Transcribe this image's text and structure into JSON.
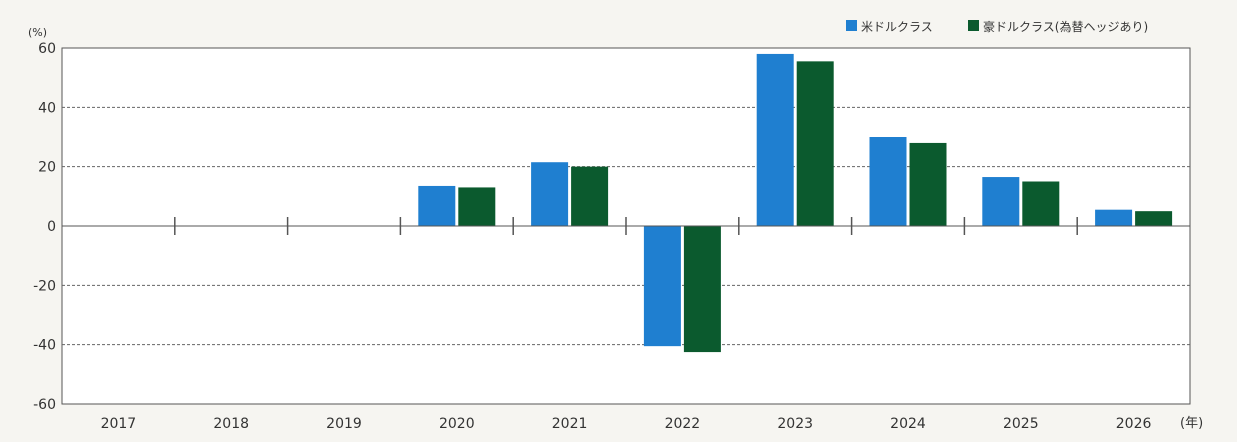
{
  "chart_data": {
    "type": "bar",
    "categories": [
      "2017",
      "2018",
      "2019",
      "2020",
      "2021",
      "2022",
      "2023",
      "2024",
      "2025",
      "2026"
    ],
    "series": [
      {
        "name": "米ドルクラス",
        "color": "#1f7fd0",
        "values": [
          null,
          null,
          null,
          13.5,
          21.5,
          -40.5,
          58.0,
          30.0,
          16.5,
          5.5
        ]
      },
      {
        "name": "豪ドルクラス(為替ヘッジあり)",
        "color": "#0b5a2e",
        "values": [
          null,
          null,
          null,
          13.0,
          20.0,
          -42.5,
          55.5,
          28.0,
          15.0,
          5.0
        ]
      }
    ],
    "yunit": "(%)",
    "xunit": "(年)",
    "ylim": [
      -60,
      60
    ],
    "yticks": [
      60,
      40,
      20,
      0,
      -20,
      -40,
      -60
    ],
    "grid": true,
    "legend_position": "top-right"
  }
}
